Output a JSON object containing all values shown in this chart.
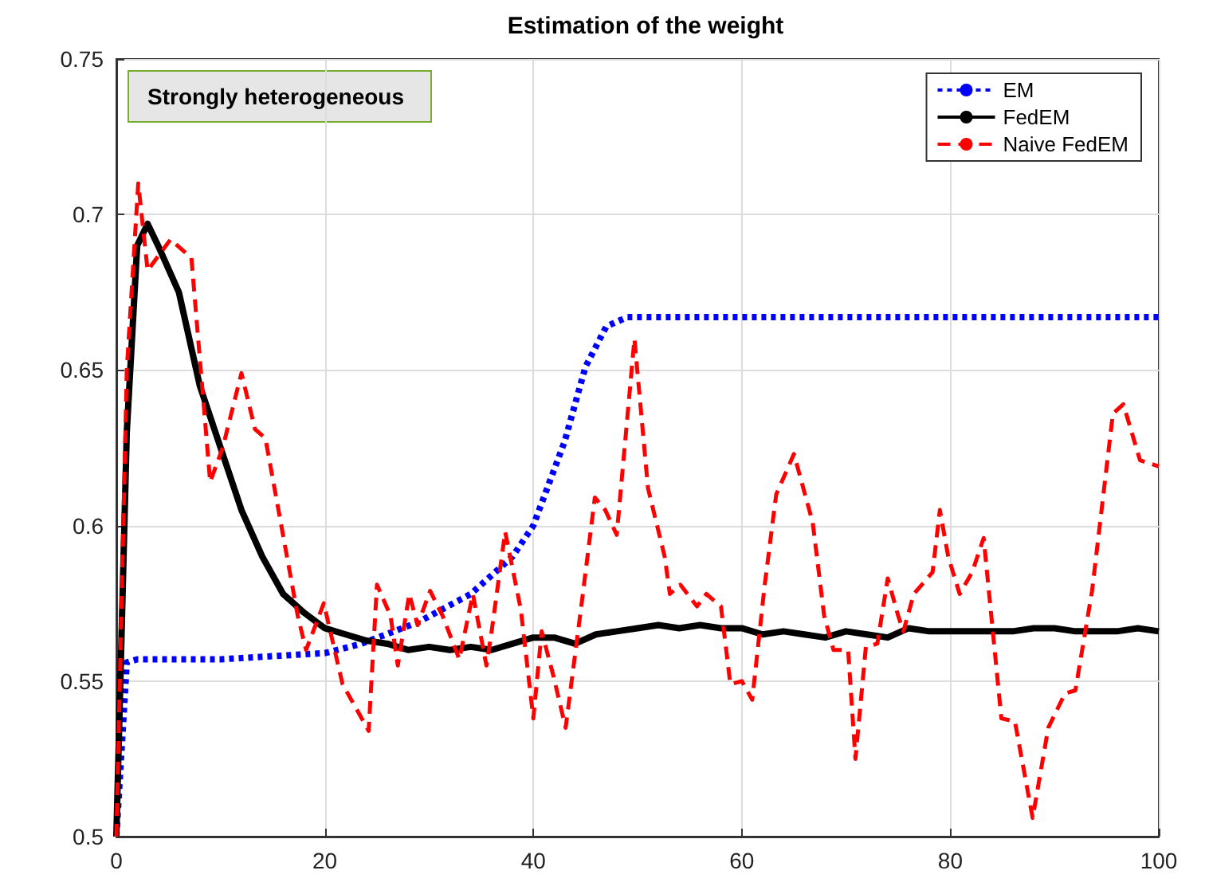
{
  "chart_data": {
    "type": "line",
    "title": "Estimation of the weight",
    "annotations": [
      "Strongly heterogeneous"
    ],
    "xlim": [
      0,
      100
    ],
    "xticks": [
      0,
      20,
      40,
      60,
      80,
      100
    ],
    "ylim": [
      0.5,
      0.75
    ],
    "yticks": [
      0.5,
      0.55,
      0.6,
      0.65,
      0.7,
      0.75
    ],
    "grid": true,
    "legend": "top right",
    "marker": "none",
    "series": [
      {
        "name": "EM",
        "color": "#0000ff",
        "line_style": "dotted",
        "x": [
          0,
          1,
          2,
          10,
          20,
          23.5,
          29,
          34,
          38,
          40,
          43,
          45,
          47,
          49,
          50,
          60,
          70,
          80,
          90,
          100
        ],
        "values": [
          0.5,
          0.556,
          0.557,
          0.557,
          0.559,
          0.562,
          0.569,
          0.578,
          0.59,
          0.6,
          0.627,
          0.651,
          0.664,
          0.667,
          0.667,
          0.667,
          0.667,
          0.667,
          0.667,
          0.667
        ]
      },
      {
        "name": "FedEM",
        "color": "#000000",
        "line_style": "solid",
        "x": [
          0,
          1,
          2,
          3,
          4,
          6,
          8,
          10,
          12,
          14,
          16,
          18,
          20,
          22,
          24,
          26,
          28,
          30,
          32,
          34,
          36,
          38,
          40,
          42,
          44,
          46,
          48,
          50,
          52,
          54,
          56,
          58,
          60,
          62,
          64,
          66,
          68,
          70,
          72,
          74,
          76,
          78,
          80,
          82,
          84,
          86,
          88,
          90,
          92,
          94,
          96,
          98,
          100
        ],
        "values": [
          0.5,
          0.63,
          0.69,
          0.697,
          0.69,
          0.675,
          0.645,
          0.625,
          0.605,
          0.59,
          0.578,
          0.572,
          0.567,
          0.565,
          0.563,
          0.562,
          0.56,
          0.561,
          0.56,
          0.561,
          0.56,
          0.562,
          0.564,
          0.564,
          0.562,
          0.565,
          0.566,
          0.567,
          0.568,
          0.567,
          0.568,
          0.567,
          0.567,
          0.565,
          0.566,
          0.565,
          0.564,
          0.566,
          0.565,
          0.564,
          0.567,
          0.566,
          0.566,
          0.566,
          0.566,
          0.566,
          0.567,
          0.567,
          0.566,
          0.566,
          0.566,
          0.567,
          0.566
        ]
      },
      {
        "name": "Naive FedEM",
        "color": "#ff0000",
        "line_style": "dashed",
        "x": [
          0,
          1,
          2.1,
          3,
          5.2,
          7.2,
          9,
          10.2,
          12,
          13.3,
          14.3,
          17.4,
          18.2,
          19.9,
          21.7,
          24.2,
          25,
          26.3,
          27,
          28.1,
          28.9,
          30.1,
          31.3,
          32.9,
          34.2,
          35.5,
          36,
          37.3,
          38.8,
          40,
          40.8,
          41.9,
          43.1,
          44.6,
          45.9,
          46.9,
          48,
          49.7,
          51,
          52.6,
          53.1,
          54.1,
          55.7,
          56.6,
          58,
          58.9,
          60,
          61,
          62.2,
          63.3,
          65,
          66.8,
          67.9,
          68.8,
          70.2,
          70.9,
          71.9,
          73,
          74,
          75,
          75.5,
          76.5,
          78.3,
          79,
          79.8,
          80.9,
          82.1,
          83.2,
          84.9,
          86.2,
          87.9,
          89.4,
          91,
          92,
          93.6,
          95.6,
          96.6,
          98.2,
          100
        ],
        "values": [
          0.5,
          0.65,
          0.71,
          0.682,
          0.692,
          0.686,
          0.614,
          0.625,
          0.649,
          0.631,
          0.628,
          0.571,
          0.56,
          0.575,
          0.549,
          0.534,
          0.581,
          0.571,
          0.555,
          0.578,
          0.568,
          0.579,
          0.571,
          0.557,
          0.578,
          0.555,
          0.566,
          0.598,
          0.573,
          0.538,
          0.566,
          0.552,
          0.535,
          0.574,
          0.609,
          0.605,
          0.597,
          0.66,
          0.612,
          0.59,
          0.578,
          0.581,
          0.574,
          0.578,
          0.574,
          0.549,
          0.55,
          0.544,
          0.581,
          0.61,
          0.623,
          0.601,
          0.571,
          0.56,
          0.56,
          0.525,
          0.561,
          0.562,
          0.583,
          0.571,
          0.566,
          0.578,
          0.585,
          0.605,
          0.59,
          0.578,
          0.585,
          0.596,
          0.538,
          0.537,
          0.506,
          0.535,
          0.546,
          0.547,
          0.579,
          0.636,
          0.639,
          0.621,
          0.619
        ]
      }
    ]
  }
}
